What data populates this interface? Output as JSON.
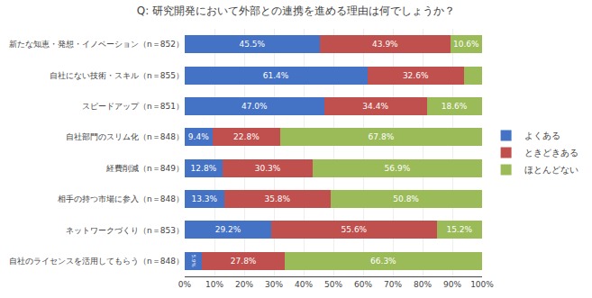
{
  "chart_data": {
    "type": "bar",
    "title": "Q: 研究開発において外部との連携を進める理由は何でしょうか？",
    "orientation": "horizontal",
    "stacked": true,
    "data_labels": true,
    "grid": true,
    "legend": "right",
    "categories": [
      "新たな知恵・発想・イノベーション（n＝852）",
      "自社にない技術・スキル（n＝855）",
      "スピードアップ（n＝851）",
      "自社部門のスリム化（n＝848）",
      "経費削減（n＝849）",
      "相手の持つ市場に参入（n＝848）",
      "ネットワークづくり（n＝853）",
      "自社のライセンスを活用してもらう（n＝848）"
    ],
    "series": [
      {
        "name": "よくある",
        "color": "#4472C4",
        "values": [
          45.5,
          61.4,
          47.0,
          9.4,
          12.8,
          13.3,
          29.2,
          5.9
        ],
        "value_labels": [
          "45.5%",
          "61.4%",
          "47.0%",
          "9.4%",
          "12.8%",
          "13.3%",
          "29.2%",
          "5.9%"
        ]
      },
      {
        "name": "ときどきある",
        "color": "#C0504D",
        "values": [
          43.9,
          32.6,
          34.4,
          22.8,
          30.3,
          35.8,
          55.6,
          27.8
        ],
        "value_labels": [
          "43.9%",
          "32.6%",
          "34.4%",
          "22.8%",
          "30.3%",
          "35.8%",
          "55.6%",
          "27.8%"
        ]
      },
      {
        "name": "ほとんどない",
        "color": "#9BBB59",
        "values": [
          10.6,
          6.0,
          18.6,
          67.8,
          56.9,
          50.8,
          15.2,
          66.3
        ],
        "value_labels": [
          "10.6%",
          null,
          "18.6%",
          "67.8%",
          "56.9%",
          "50.8%",
          "15.2%",
          "66.3%"
        ]
      }
    ],
    "xlim": [
      0,
      100
    ],
    "xticks": [
      {
        "value": 0,
        "label": "0%"
      },
      {
        "value": 10,
        "label": "10%"
      },
      {
        "value": 20,
        "label": "20%"
      },
      {
        "value": 30,
        "label": "30%"
      },
      {
        "value": 40,
        "label": "40%"
      },
      {
        "value": 50,
        "label": "50%"
      },
      {
        "value": 60,
        "label": "60%"
      },
      {
        "value": 70,
        "label": "70%"
      },
      {
        "value": 80,
        "label": "80%"
      },
      {
        "value": 90,
        "label": "90%"
      },
      {
        "value": 100,
        "label": "100%"
      }
    ]
  }
}
